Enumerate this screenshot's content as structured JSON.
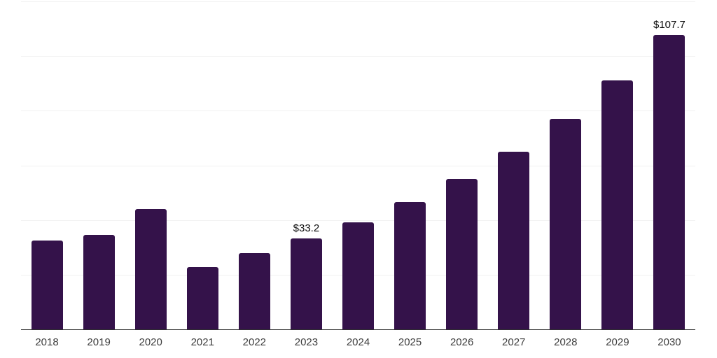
{
  "chart_data": {
    "type": "bar",
    "title": "",
    "xlabel": "",
    "ylabel": "",
    "categories": [
      "2018",
      "2019",
      "2020",
      "2021",
      "2022",
      "2023",
      "2024",
      "2025",
      "2026",
      "2027",
      "2028",
      "2029",
      "2030"
    ],
    "values": [
      32.4,
      34.6,
      44.1,
      22.7,
      28.0,
      33.2,
      39.2,
      46.6,
      55.0,
      65.0,
      76.9,
      91.0,
      107.7
    ],
    "bar_labels": [
      "",
      "",
      "",
      "",
      "",
      "$33.2",
      "",
      "",
      "",
      "",
      "",
      "",
      "$107.7"
    ],
    "ylim": [
      0,
      120
    ],
    "gridline_step": 20,
    "grid": "horizontal-only",
    "legend_position": "none",
    "y_tick_labels_visible": false,
    "bar_color": "#34124a",
    "gridline_color": "#f1f1f1",
    "axis_line_color": "#2f2f2f",
    "value_label_color": "#0d0d0d",
    "tick_label_color": "#3d3d3d"
  }
}
